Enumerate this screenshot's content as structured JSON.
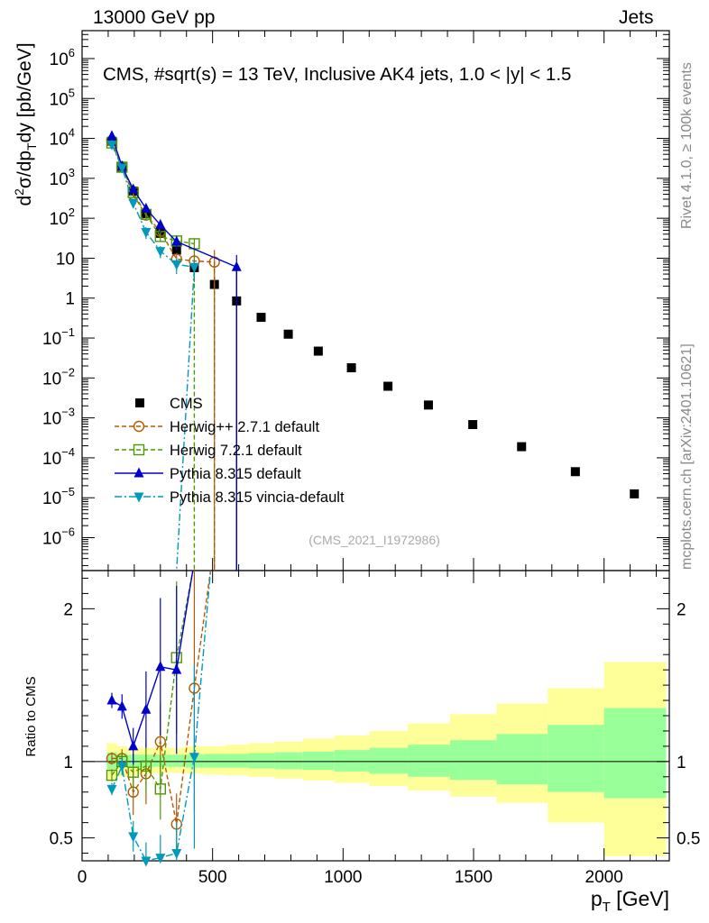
{
  "header": {
    "left": "13000 GeV pp",
    "right": "Jets",
    "plot_title": "CMS, #sqrt(s) = 13 TeV, Inclusive AK4 jets, 1.0 < |y| < 1.5",
    "analysis_id": "(CMS_2021_I1972986)",
    "rivet_label": "Rivet 4.1.0, ≥ 100k events",
    "source_label": "mcplots.cern.ch [arXiv:2401.10621]"
  },
  "chart_data": [
    {
      "type": "scatter",
      "panel": "main",
      "ylog": true,
      "ylabel": "d²σ/dp_T dy [pb/GeV]",
      "xlim": [
        0,
        2250
      ],
      "ylim": [
        1.5e-07,
        5000000.0
      ],
      "yticks": [
        {
          "v": 1000000.0,
          "b": "10",
          "e": "6"
        },
        {
          "v": 100000.0,
          "b": "10",
          "e": "5"
        },
        {
          "v": 10000.0,
          "b": "10",
          "e": "4"
        },
        {
          "v": 1000.0,
          "b": "10",
          "e": "3"
        },
        {
          "v": 100.0,
          "b": "10",
          "e": "2"
        },
        {
          "v": 10,
          "b": "10",
          "e": ""
        },
        {
          "v": 1,
          "b": "1",
          "e": ""
        },
        {
          "v": 0.1,
          "b": "10",
          "e": "−1"
        },
        {
          "v": 0.01,
          "b": "10",
          "e": "−2"
        },
        {
          "v": 0.001,
          "b": "10",
          "e": "−3"
        },
        {
          "v": 0.0001,
          "b": "10",
          "e": "−4"
        },
        {
          "v": 1e-05,
          "b": "10",
          "e": "−5"
        },
        {
          "v": 1e-06,
          "b": "10",
          "e": "−6"
        }
      ],
      "series": [
        {
          "name": "CMS",
          "style": "data",
          "color": "#000000",
          "x": [
            114,
            153,
            196,
            245,
            300,
            362,
            430,
            507,
            592,
            686,
            790,
            905,
            1032,
            1172,
            1327,
            1497,
            1684,
            1890,
            2116
          ],
          "y": [
            8500,
            1900,
            480,
            130,
            42,
            16,
            5.8,
            2.2,
            0.85,
            0.33,
            0.125,
            0.047,
            0.018,
            0.0062,
            0.0021,
            0.00068,
            0.00019,
            4.5e-05,
            1.25e-05
          ]
        },
        {
          "name": "Herwig++ 2.7.1 default",
          "style": "dashed",
          "marker": "circle",
          "color": "#b35a00",
          "x": [
            114,
            153,
            196,
            245,
            300,
            362,
            430,
            507
          ],
          "y": [
            8600,
            1950,
            390,
            120,
            47,
            9.5,
            8.5,
            8
          ],
          "yerr": [
            1000,
            200,
            60,
            25,
            10,
            4,
            6,
            8
          ],
          "drop_to_floor_at": 507
        },
        {
          "name": "Herwig 7.2.1 default",
          "style": "dashed",
          "marker": "square",
          "color": "#4c9900",
          "x": [
            114,
            153,
            196,
            245,
            300,
            362,
            430
          ],
          "y": [
            7700,
            1900,
            440,
            125,
            35,
            27,
            23
          ],
          "yerr": [
            800,
            200,
            60,
            25,
            8,
            8,
            8
          ],
          "drop_to_floor_at": 430
        },
        {
          "name": "Pythia 8.315 default",
          "style": "solid",
          "marker": "triangle-up",
          "color": "#0000cc",
          "x": [
            114,
            153,
            196,
            245,
            300,
            362,
            592
          ],
          "y": [
            11500,
            2000,
            530,
            175,
            68,
            26,
            6
          ],
          "yerr": [
            900,
            150,
            60,
            30,
            25,
            10,
            6
          ],
          "drop_to_floor_at": 592
        },
        {
          "name": "Pythia 8.315 vincia-default",
          "style": "dashdot",
          "marker": "triangle-down",
          "color": "#0099bb",
          "x": [
            114,
            153,
            196,
            245,
            300,
            362,
            430
          ],
          "y": [
            7000,
            1850,
            240,
            45,
            15,
            7,
            6
          ],
          "yerr": [
            900,
            200,
            60,
            15,
            5,
            3,
            3
          ],
          "drop_to_floor_at": 362
        }
      ],
      "legend_position": "bottom-left"
    },
    {
      "type": "line",
      "panel": "ratio",
      "ylabel": "Ratio to CMS",
      "xlabel": "p_T [GeV]",
      "xlim": [
        0,
        2250
      ],
      "ylim": [
        0.35,
        2.25
      ],
      "xticks": [
        0,
        500,
        1000,
        1500,
        2000
      ],
      "yticks": [
        2,
        1,
        0.5
      ],
      "uncertainty_bands": {
        "edges": [
          95,
          134,
          174,
          220,
          272,
          330,
          395,
          468,
          548,
          638,
          737,
          846,
          967,
          1101,
          1248,
          1410,
          1588,
          1784,
          2000,
          2238
        ],
        "green_lo": [
          0.95,
          0.96,
          0.96,
          0.96,
          0.965,
          0.965,
          0.96,
          0.96,
          0.96,
          0.955,
          0.95,
          0.945,
          0.935,
          0.92,
          0.9,
          0.88,
          0.85,
          0.8,
          0.76
        ],
        "green_hi": [
          1.06,
          1.05,
          1.045,
          1.045,
          1.045,
          1.045,
          1.045,
          1.05,
          1.05,
          1.055,
          1.06,
          1.065,
          1.075,
          1.09,
          1.11,
          1.14,
          1.18,
          1.24,
          1.35
        ],
        "yellow_lo": [
          0.88,
          0.9,
          0.91,
          0.92,
          0.925,
          0.925,
          0.92,
          0.915,
          0.91,
          0.9,
          0.89,
          0.875,
          0.86,
          0.84,
          0.81,
          0.77,
          0.73,
          0.6,
          0.38
        ],
        "yellow_hi": [
          1.12,
          1.1,
          1.09,
          1.09,
          1.09,
          1.09,
          1.1,
          1.1,
          1.11,
          1.12,
          1.13,
          1.15,
          1.17,
          1.2,
          1.25,
          1.31,
          1.38,
          1.48,
          1.65
        ]
      },
      "series": [
        {
          "name": "Herwig++ 2.7.1 default",
          "color": "#b35a00",
          "style": "dashed",
          "marker": "circle",
          "x": [
            114,
            153,
            196,
            245,
            300,
            362,
            430
          ],
          "y": [
            1.02,
            1.02,
            0.8,
            0.92,
            1.13,
            0.59,
            1.48
          ],
          "yerr": [
            0.04,
            0.06,
            0.15,
            0.2,
            0.25,
            0.2,
            0.8
          ]
        },
        {
          "name": "Herwig 7.2.1 default",
          "color": "#4c9900",
          "style": "dashed",
          "marker": "square",
          "x": [
            114,
            153,
            196,
            245,
            300,
            362
          ],
          "y": [
            0.91,
            1.0,
            0.93,
            0.97,
            0.82,
            1.68
          ],
          "yerr": [
            0.04,
            0.06,
            0.12,
            0.18,
            0.2,
            0.5
          ]
        },
        {
          "name": "Pythia 8.315 default",
          "color": "#0000cc",
          "style": "solid",
          "marker": "triangle-up",
          "x": [
            114,
            153,
            196,
            245,
            300,
            362
          ],
          "y": [
            1.4,
            1.36,
            1.1,
            1.34,
            1.62,
            1.6
          ],
          "yerr": [
            0.05,
            0.08,
            0.12,
            0.25,
            0.45,
            0.55
          ]
        },
        {
          "name": "Pythia 8.315 vincia-default",
          "color": "#0099bb",
          "style": "dashdot",
          "marker": "triangle-down",
          "x": [
            114,
            153,
            196,
            245,
            300,
            362,
            430
          ],
          "y": [
            0.82,
            0.97,
            0.51,
            0.35,
            0.37,
            0.4,
            1.03
          ],
          "yerr": [
            0.04,
            0.06,
            0.1,
            0.12,
            0.15,
            0.2,
            0.6
          ]
        }
      ]
    }
  ]
}
